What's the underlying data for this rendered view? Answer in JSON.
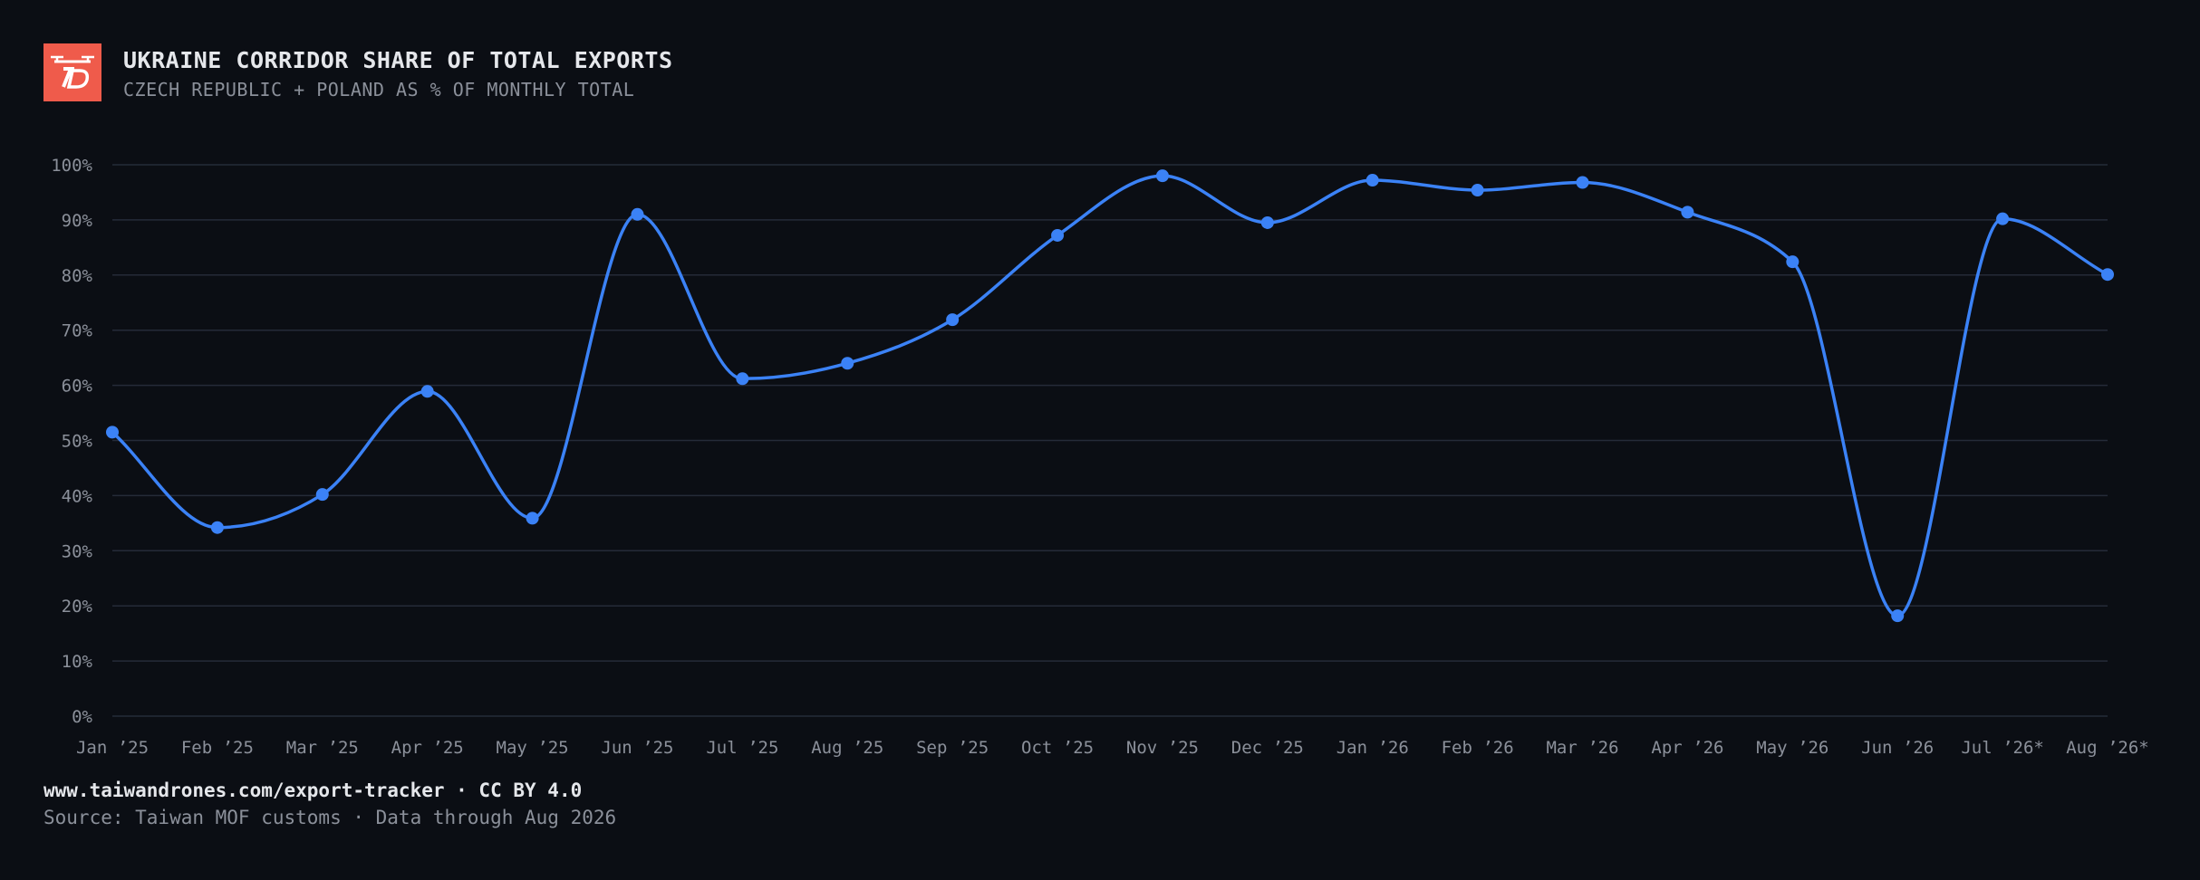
{
  "header": {
    "logo_icon": "drone-logo-icon",
    "title": "UKRAINE CORRIDOR SHARE OF TOTAL EXPORTS",
    "subtitle": "CZECH REPUBLIC + POLAND AS % OF MONTHLY TOTAL"
  },
  "footer": {
    "link": "www.taiwandrones.com/export-tracker · CC BY 4.0",
    "source": "Source: Taiwan MOF customs · Data through Aug 2026"
  },
  "colors": {
    "background": "#0b0e14",
    "line": "#3b82f6",
    "grid": "#252b38",
    "tick_text": "#8b909a",
    "logo": "#ef5b4b"
  },
  "chart_data": {
    "type": "line",
    "title": "UKRAINE CORRIDOR SHARE OF TOTAL EXPORTS",
    "subtitle": "CZECH REPUBLIC + POLAND AS % OF MONTHLY TOTAL",
    "xlabel": "",
    "ylabel": "",
    "ylim": [
      0,
      100
    ],
    "yticks": [
      "0%",
      "10%",
      "20%",
      "30%",
      "40%",
      "50%",
      "60%",
      "70%",
      "80%",
      "90%",
      "100%"
    ],
    "grid": true,
    "categories": [
      "Jan ’25",
      "Feb ’25",
      "Mar ’25",
      "Apr ’25",
      "May ’25",
      "Jun ’25",
      "Jul ’25",
      "Aug ’25",
      "Sep ’25",
      "Oct ’25",
      "Nov ’25",
      "Dec ’25",
      "Jan ’26",
      "Feb ’26",
      "Mar ’26",
      "Apr ’26",
      "May ’26",
      "Jun ’26",
      "Jul ’26*",
      "Aug ’26*"
    ],
    "values": [
      51.5,
      34.2,
      40.2,
      58.9,
      35.9,
      91,
      61.2,
      64,
      71.9,
      87.2,
      98,
      89.5,
      97.2,
      95.4,
      96.8,
      91.4,
      82.4,
      18.2,
      90.2,
      80.1
    ]
  }
}
